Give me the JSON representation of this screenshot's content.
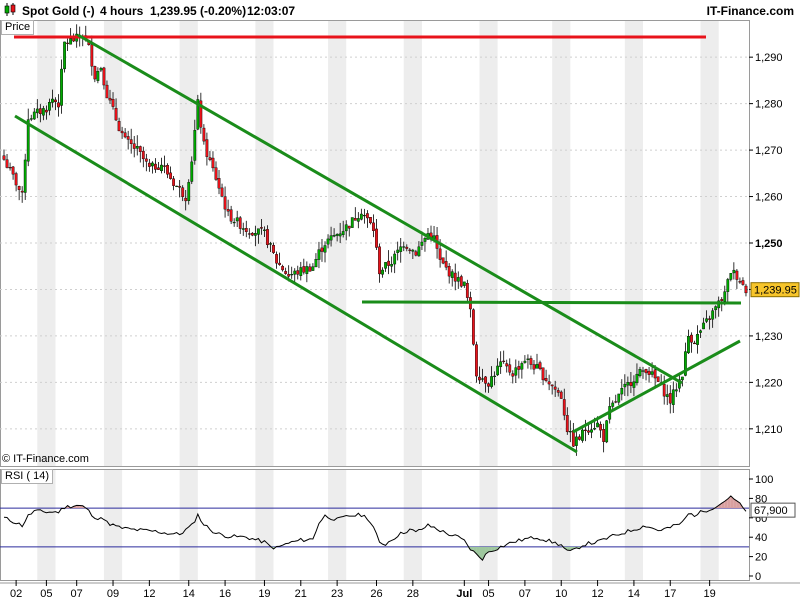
{
  "header": {
    "instrument": "Spot Gold (-)",
    "timeframe": "4 hours",
    "price_change": "1,239.95 (-0.20%)",
    "time": "12:03:07",
    "brand": "IT-Finance.com"
  },
  "price_panel": {
    "label": "Price",
    "watermark": "© IT-Finance.com"
  },
  "rsi_panel": {
    "label": "RSI ( 14)"
  },
  "colors": {
    "up": "#00aa00",
    "down": "#e8131b",
    "trendline": "#1a8c1a",
    "resistance": "#e8131b",
    "grid": "#cfcfcf",
    "shade": "#ededed",
    "rsi_line": "#000000",
    "rsi_level": "#2b2b9c",
    "rsi_fill_high": "#d9a0a0",
    "rsi_fill_low": "#9ec79e",
    "price_tag": "#f7c52b"
  },
  "chart_data": [
    {
      "type": "candlestick",
      "title": "Spot Gold (-)",
      "interval": "4 hours",
      "ylim": [
        1202,
        1298
      ],
      "y_ticks": [
        "1,210",
        "1,220",
        "1,230",
        "1,240",
        "1,250",
        "1,260",
        "1,270",
        "1,280",
        "1,290"
      ],
      "y_tick_values": [
        1210,
        1220,
        1230,
        1240,
        1250,
        1260,
        1270,
        1280,
        1290
      ],
      "x_tick_labels": [
        "02",
        "05",
        "07",
        "09",
        "12",
        "14",
        "16",
        "19",
        "21",
        "23",
        "26",
        "28",
        "Jul",
        "05",
        "07",
        "10",
        "12",
        "14",
        "17",
        "19"
      ],
      "last_price": 1239.95,
      "last_price_label": "1,239.95",
      "close_path": [
        [
          0,
          1268
        ],
        [
          4,
          1263
        ],
        [
          6,
          1260
        ],
        [
          8,
          1277
        ],
        [
          14,
          1279
        ],
        [
          16,
          1281
        ],
        [
          18,
          1280
        ],
        [
          20,
          1293
        ],
        [
          24,
          1294
        ],
        [
          26,
          1295
        ],
        [
          28,
          1292
        ],
        [
          30,
          1286
        ],
        [
          32,
          1288
        ],
        [
          34,
          1282
        ],
        [
          38,
          1275
        ],
        [
          40,
          1272
        ],
        [
          44,
          1270
        ],
        [
          48,
          1266
        ],
        [
          52,
          1267
        ],
        [
          56,
          1263
        ],
        [
          60,
          1260
        ],
        [
          62,
          1268
        ],
        [
          64,
          1280
        ],
        [
          66,
          1271
        ],
        [
          70,
          1264
        ],
        [
          74,
          1256
        ],
        [
          80,
          1253
        ],
        [
          86,
          1252
        ],
        [
          90,
          1246
        ],
        [
          94,
          1243
        ],
        [
          98,
          1244
        ],
        [
          102,
          1245
        ],
        [
          104,
          1248
        ],
        [
          106,
          1250
        ],
        [
          110,
          1252
        ],
        [
          114,
          1254
        ],
        [
          118,
          1257
        ],
        [
          120,
          1255
        ],
        [
          122,
          1253
        ],
        [
          124,
          1244
        ],
        [
          128,
          1246
        ],
        [
          132,
          1250
        ],
        [
          136,
          1248
        ],
        [
          140,
          1252
        ],
        [
          142,
          1251
        ],
        [
          144,
          1246
        ],
        [
          148,
          1243
        ],
        [
          152,
          1241
        ],
        [
          154,
          1235
        ],
        [
          156,
          1222
        ],
        [
          160,
          1220
        ],
        [
          164,
          1224
        ],
        [
          168,
          1222
        ],
        [
          172,
          1225
        ],
        [
          176,
          1223
        ],
        [
          180,
          1220
        ],
        [
          184,
          1217
        ],
        [
          186,
          1210
        ],
        [
          188,
          1207
        ],
        [
          190,
          1208
        ],
        [
          192,
          1210
        ],
        [
          196,
          1211
        ],
        [
          198,
          1208
        ],
        [
          200,
          1214
        ],
        [
          204,
          1218
        ],
        [
          208,
          1221
        ],
        [
          212,
          1223
        ],
        [
          216,
          1220
        ],
        [
          220,
          1216
        ],
        [
          222,
          1219
        ],
        [
          224,
          1222
        ],
        [
          226,
          1230
        ],
        [
          228,
          1229
        ],
        [
          232,
          1233
        ],
        [
          236,
          1237
        ],
        [
          238,
          1239
        ],
        [
          240,
          1244
        ],
        [
          242,
          1243
        ],
        [
          244,
          1241
        ],
        [
          245,
          1239.95
        ]
      ]
    },
    {
      "type": "line",
      "title": "RSI ( 14)",
      "ylim": [
        0,
        100
      ],
      "y_ticks": [
        "100",
        "80",
        "60",
        "40",
        "20",
        "0"
      ],
      "y_tick_values": [
        100,
        80,
        60,
        40,
        20,
        0
      ],
      "levels": [
        70,
        30
      ],
      "last_value": 67.9,
      "last_value_label": "67,900",
      "values_path": [
        [
          0,
          60
        ],
        [
          4,
          55
        ],
        [
          6,
          52
        ],
        [
          8,
          62
        ],
        [
          10,
          67
        ],
        [
          14,
          66
        ],
        [
          18,
          66
        ],
        [
          20,
          71
        ],
        [
          24,
          73
        ],
        [
          26,
          72
        ],
        [
          28,
          67
        ],
        [
          30,
          58
        ],
        [
          32,
          62
        ],
        [
          34,
          55
        ],
        [
          38,
          50
        ],
        [
          42,
          48
        ],
        [
          46,
          47
        ],
        [
          50,
          46
        ],
        [
          54,
          44
        ],
        [
          58,
          43
        ],
        [
          62,
          52
        ],
        [
          64,
          63
        ],
        [
          66,
          53
        ],
        [
          70,
          44
        ],
        [
          74,
          41
        ],
        [
          80,
          40
        ],
        [
          86,
          35
        ],
        [
          88,
          30
        ],
        [
          90,
          29
        ],
        [
          94,
          34
        ],
        [
          98,
          37
        ],
        [
          102,
          38
        ],
        [
          104,
          55
        ],
        [
          106,
          62
        ],
        [
          110,
          58
        ],
        [
          114,
          62
        ],
        [
          118,
          63
        ],
        [
          120,
          60
        ],
        [
          122,
          50
        ],
        [
          124,
          34
        ],
        [
          126,
          33
        ],
        [
          130,
          42
        ],
        [
          134,
          48
        ],
        [
          136,
          45
        ],
        [
          140,
          52
        ],
        [
          142,
          50
        ],
        [
          146,
          44
        ],
        [
          150,
          40
        ],
        [
          152,
          36
        ],
        [
          154,
          28
        ],
        [
          156,
          22
        ],
        [
          158,
          18
        ],
        [
          160,
          25
        ],
        [
          164,
          30
        ],
        [
          168,
          35
        ],
        [
          172,
          38
        ],
        [
          176,
          40
        ],
        [
          180,
          36
        ],
        [
          184,
          32
        ],
        [
          186,
          25
        ],
        [
          188,
          26
        ],
        [
          190,
          30
        ],
        [
          192,
          33
        ],
        [
          196,
          35
        ],
        [
          200,
          40
        ],
        [
          204,
          44
        ],
        [
          208,
          48
        ],
        [
          212,
          52
        ],
        [
          216,
          47
        ],
        [
          220,
          50
        ],
        [
          224,
          55
        ],
        [
          226,
          64
        ],
        [
          228,
          63
        ],
        [
          232,
          68
        ],
        [
          236,
          73
        ],
        [
          238,
          78
        ],
        [
          240,
          81
        ],
        [
          242,
          77
        ],
        [
          244,
          70
        ],
        [
          245,
          67.9
        ]
      ]
    }
  ]
}
